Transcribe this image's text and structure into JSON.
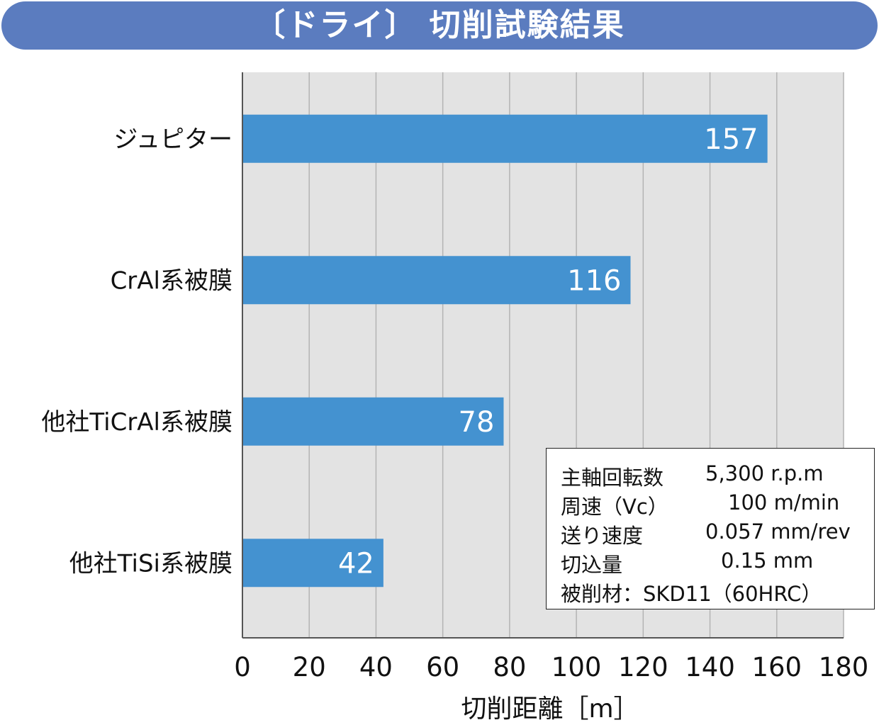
{
  "chart_data": {
    "type": "bar",
    "orientation": "horizontal",
    "title": "〔ドライ〕 切削試験結果",
    "categories": [
      "ジュピター",
      "CrAl系被膜",
      "他社TiCrAl系被膜",
      "他社TiSi系被膜"
    ],
    "values": [
      157,
      116,
      78,
      42
    ],
    "value_labels": [
      "157",
      "116",
      "78",
      "42"
    ],
    "xlabel": "切削距離［m］",
    "xlim": [
      0,
      180
    ],
    "xticks": [
      "0",
      "20",
      "40",
      "60",
      "80",
      "100",
      "120",
      "140",
      "160",
      "180"
    ],
    "grid": true,
    "bar_color": "#4492d0",
    "plot_background": "#e3e3e3",
    "banner_color": "#5b7cbf"
  },
  "conditions": [
    {
      "label": "主軸回転数",
      "value": "5,300 r.p.m"
    },
    {
      "label": "周速（Vc）",
      "value": "100 m/min"
    },
    {
      "label": "送り速度",
      "value": "0.057 mm/rev"
    },
    {
      "label": "切込量",
      "value": "0.15 mm"
    },
    {
      "label": "被削材：SKD11（60HRC）",
      "value": ""
    }
  ]
}
